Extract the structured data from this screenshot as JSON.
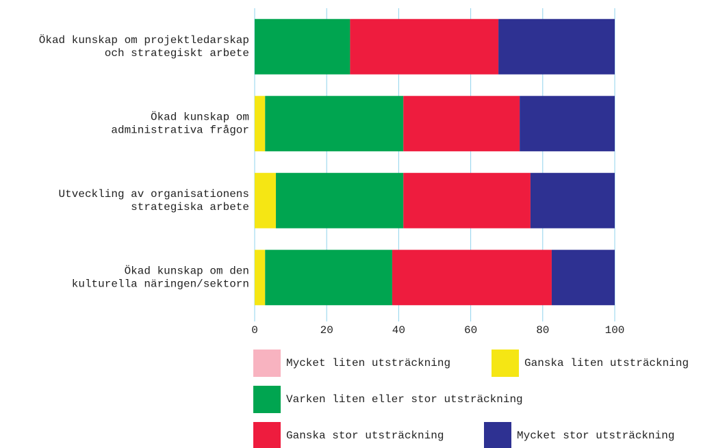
{
  "chart_data": {
    "type": "stacked_barh",
    "categories": [
      [
        "Ökad kunskap om projektledarskap",
        "och strategiskt arbete"
      ],
      [
        "Ökad kunskap om",
        "administrativa frågor"
      ],
      [
        "Utveckling av organisationens",
        "strategiska arbete"
      ],
      [
        "Ökad kunskap om den",
        "kulturella näringen/sektorn"
      ]
    ],
    "series": [
      {
        "name": "Mycket liten utsträckning",
        "color": "#f8b3c0",
        "values": [
          0,
          0,
          0,
          0
        ]
      },
      {
        "name": "Ganska liten utsträckning",
        "color": "#f5e614",
        "values": [
          0,
          2.9,
          5.9,
          2.9
        ]
      },
      {
        "name": "Varken liten eller stor utsträckning",
        "color": "#00a550",
        "values": [
          26.5,
          38.4,
          35.4,
          35.3
        ]
      },
      {
        "name": "Ganska stor utsträckning",
        "color": "#ee1c3e",
        "values": [
          41.2,
          32.3,
          35.3,
          44.3
        ]
      },
      {
        "name": "Mycket stor utsträckning",
        "color": "#2e3192",
        "values": [
          32.3,
          26.4,
          23.4,
          17.5
        ]
      }
    ],
    "xlim": [
      0,
      100
    ],
    "xticks": [
      0,
      20,
      40,
      60,
      80,
      100
    ],
    "grid": true
  }
}
